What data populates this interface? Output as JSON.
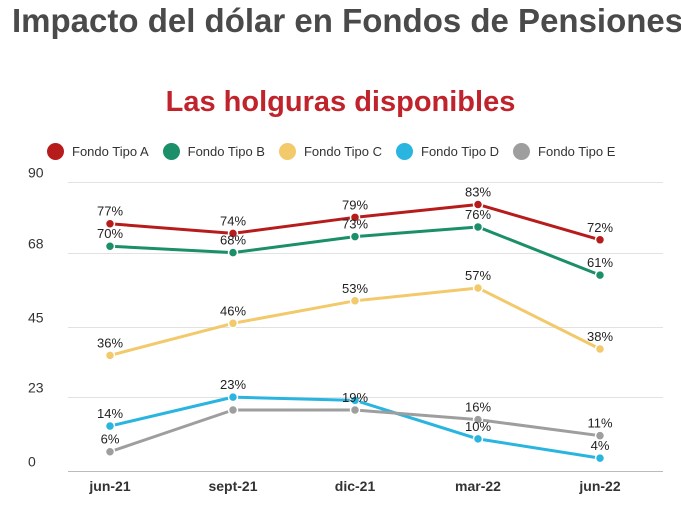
{
  "page": {
    "title": "Impacto del dólar en Fondos de Pensiones"
  },
  "chart_data": {
    "type": "line",
    "title": "Las holguras disponibles",
    "xlabel": "",
    "ylabel": "",
    "categories": [
      "jun-21",
      "sept-21",
      "dic-21",
      "mar-22",
      "jun-22"
    ],
    "y_ticks": [
      "90",
      "68",
      "45",
      "23",
      "0"
    ],
    "y_tick_values": [
      90,
      68,
      45,
      23,
      0
    ],
    "ylim": [
      0,
      90
    ],
    "grid": true,
    "legend_position": "top",
    "series": [
      {
        "name": "Fondo Tipo A",
        "color": "#b71c1c",
        "values": [
          77,
          74,
          79,
          83,
          72
        ],
        "labels": [
          "77%",
          "74%",
          "79%",
          "83%",
          "72%"
        ]
      },
      {
        "name": "Fondo Tipo B",
        "color": "#1a8f6a",
        "values": [
          70,
          68,
          73,
          76,
          61
        ],
        "labels": [
          "70%",
          "68%",
          "73%",
          "76%",
          "61%"
        ]
      },
      {
        "name": "Fondo Tipo C",
        "color": "#f2c96b",
        "values": [
          36,
          46,
          53,
          57,
          38
        ],
        "labels": [
          "36%",
          "46%",
          "53%",
          "57%",
          "38%"
        ]
      },
      {
        "name": "Fondo Tipo D",
        "color": "#29b5e0",
        "values": [
          14,
          23,
          22,
          10,
          4
        ],
        "labels": [
          "14%",
          "23%",
          "",
          "10%",
          "4%"
        ]
      },
      {
        "name": "Fondo Tipo E",
        "color": "#9e9e9e",
        "values": [
          6,
          19,
          19,
          16,
          11
        ],
        "labels": [
          "6%",
          "",
          "19%",
          "16%",
          "11%"
        ]
      }
    ]
  }
}
